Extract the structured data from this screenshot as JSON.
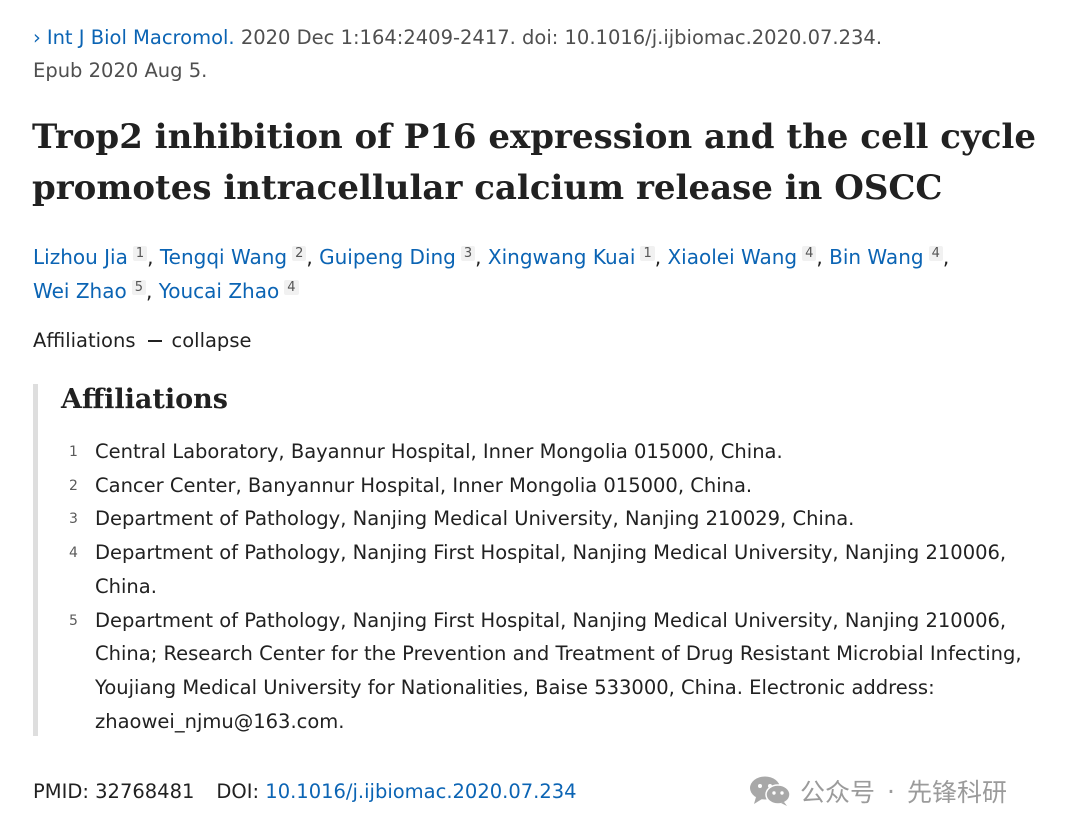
{
  "citation": {
    "journal": "Int J Biol Macromol.",
    "details": " 2020 Dec 1:164:2409-2417. doi: 10.1016/j.ijbiomac.2020.07.234.",
    "epub": "Epub 2020 Aug 5."
  },
  "article": {
    "title": "Trop2 inhibition of P16 expression and the cell cycle promotes intracellular calcium release in OSCC"
  },
  "authors": [
    {
      "name": "Lizhou Jia",
      "aff": "1"
    },
    {
      "name": "Tengqi Wang",
      "aff": "2"
    },
    {
      "name": "Guipeng Ding",
      "aff": "3"
    },
    {
      "name": "Xingwang Kuai",
      "aff": "1"
    },
    {
      "name": "Xiaolei Wang",
      "aff": "4"
    },
    {
      "name": "Bin Wang",
      "aff": "4"
    },
    {
      "name": "Wei Zhao",
      "aff": "5"
    },
    {
      "name": "Youcai Zhao",
      "aff": "4"
    }
  ],
  "affiliations_toggle": {
    "label": "Affiliations",
    "action": "collapse"
  },
  "affiliations": {
    "heading": "Affiliations",
    "items": [
      {
        "num": "1",
        "text": "Central Laboratory, Bayannur Hospital, Inner Mongolia 015000, China."
      },
      {
        "num": "2",
        "text": "Cancer Center, Banyannur Hospital, Inner Mongolia 015000, China."
      },
      {
        "num": "3",
        "text": "Department of Pathology, Nanjing Medical University, Nanjing 210029, China."
      },
      {
        "num": "4",
        "text": "Department of Pathology, Nanjing First Hospital, Nanjing Medical University, Nanjing 210006, China."
      },
      {
        "num": "5",
        "text": "Department of Pathology, Nanjing First Hospital, Nanjing Medical University, Nanjing 210006, China; Research Center for the Prevention and Treatment of Drug Resistant Microbial Infecting, Youjiang Medical University for Nationalities, Baise 533000, China. Electronic address: zhaowei_njmu@163.com."
      }
    ]
  },
  "identifiers": {
    "pmid_label": "PMID:",
    "pmid": "32768481",
    "doi_label": "DOI:",
    "doi": "10.1016/j.ijbiomac.2020.07.234"
  },
  "watermark": {
    "brand": "公众号",
    "dot": "·",
    "name": "先锋科研",
    "icon": "wechat-icon"
  },
  "colors": {
    "link": "#0b64b4",
    "text": "#212121",
    "muted": "#4f4f4f",
    "border": "#dedede"
  }
}
